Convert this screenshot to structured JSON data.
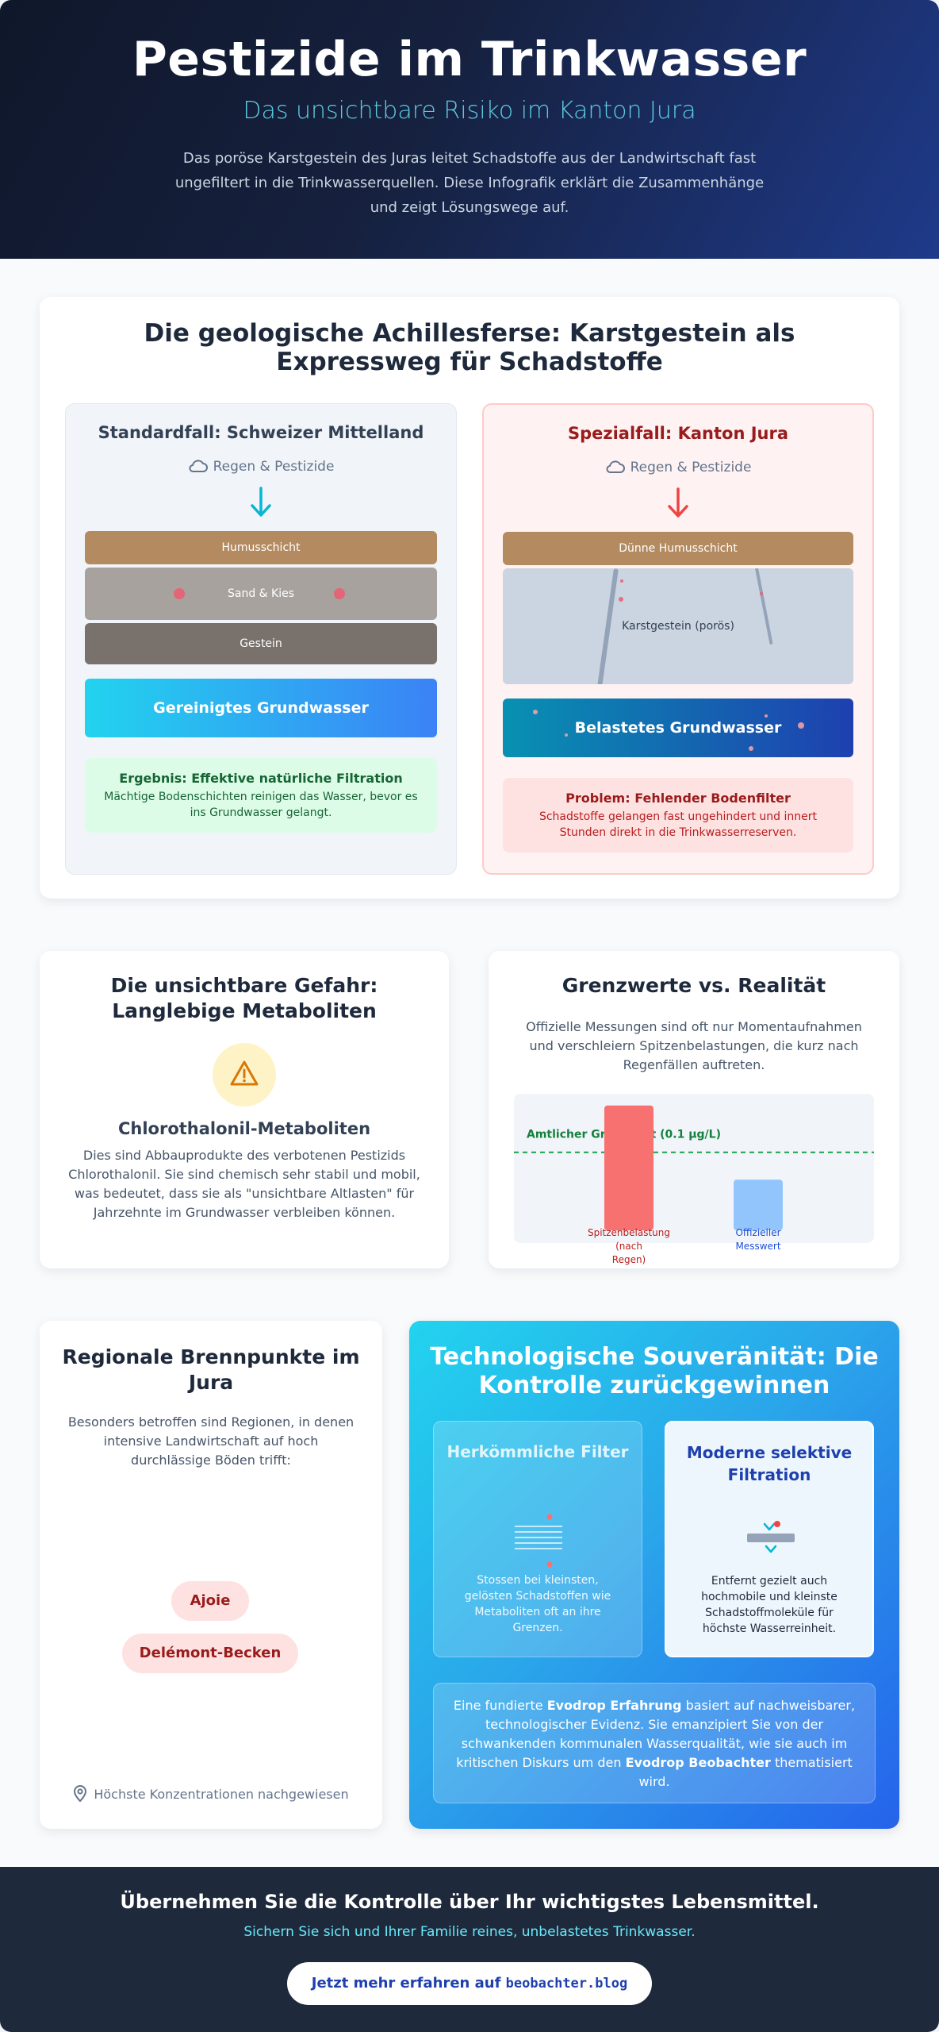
{
  "hero": {
    "title": "Pestizide im Trinkwasser",
    "subtitle": "Das unsichtbare Risiko im Kanton Jura",
    "intro": "Das poröse Karstgestein des Juras leitet Schadstoffe aus der Landwirtschaft fast ungefiltert in die Trinkwasserquellen. Diese Infografik erklärt die Zusammenhänge und zeigt Lösungswege auf."
  },
  "geology": {
    "title": "Die geologische Achillesferse: Karstgestein als Expressweg für Schadstoffe",
    "standard": {
      "title": "Standardfall: Schweizer Mittelland",
      "rain": "Regen & Pestizide",
      "layers": [
        "Humusschicht",
        "Sand & Kies",
        "Gestein"
      ],
      "water": "Gereinigtes Grundwasser",
      "result_title": "Ergebnis: Effektive natürliche Filtration",
      "result_text": "Mächtige Bodenschichten reinigen das Wasser, bevor es ins Grundwasser gelangt."
    },
    "jura": {
      "title": "Spezialfall: Kanton Jura",
      "rain": "Regen & Pestizide",
      "layers": [
        "Dünne Humusschicht",
        "Karstgestein (porös)"
      ],
      "water": "Belastetes Grundwasser",
      "result_title": "Problem: Fehlender Bodenfilter",
      "result_text": "Schadstoffe gelangen fast ungehindert und innert Stunden direkt in die Trinkwasserreserven."
    }
  },
  "metabolites": {
    "title": "Die unsichtbare Gefahr: Langlebige Metaboliten",
    "icon": "warning-icon",
    "subtitle": "Chlorothalonil-Metaboliten",
    "text": "Dies sind Abbauprodukte des verbotenen Pestizids Chlorothalonil. Sie sind chemisch sehr stabil und mobil, was bedeutet, dass sie als \"unsichtbare Altlasten\" für Jahrzehnte im Grundwasser verbleiben können."
  },
  "limits": {
    "title": "Grenzwerte vs. Realität",
    "text": "Offizielle Messungen sind oft nur Momentaufnahmen und verschleiern Spitzenbelastungen, die kurz nach Regenfällen auftreten."
  },
  "chart_data": {
    "type": "bar",
    "title": "",
    "categories": [
      "Spitzenbelastung (nach Regen)",
      "Offizieller Messwert"
    ],
    "values": [
      0.16,
      0.065
    ],
    "threshold": {
      "label": "Amtlicher Grenzwert (0.1 µg/L)",
      "value": 0.1
    },
    "ylim": [
      0,
      0.175
    ],
    "colors": [
      "#f87171",
      "#93c5fd"
    ],
    "label_colors": [
      "#b91c1c",
      "#1d4ed8"
    ],
    "threshold_color": "#16a34a",
    "grid": false
  },
  "hotspots": {
    "title": "Regionale Brennpunkte im Jura",
    "text": "Besonders betroffen sind Regionen, in denen intensive Landwirtschaft auf hoch durchlässige Böden trifft:",
    "regions": [
      "Ajoie",
      "Delémont-Becken"
    ],
    "footer": "Höchste Konzentrationen nachgewiesen"
  },
  "tech": {
    "title": "Technologische Souveränität: Die Kontrolle zurückgewinnen",
    "conventional": {
      "title": "Herkömmliche Filter",
      "text": "Stossen bei kleinsten, gelösten Schadstoffen wie Metaboliten oft an ihre Grenzen."
    },
    "modern": {
      "title": "Moderne selektive Filtration",
      "text": "Entfernt gezielt auch hochmobile und kleinste Schadstoffmoleküle für höchste Wasserreinheit."
    },
    "note": {
      "t1": "Eine fundierte ",
      "b1": "Evodrop Erfahrung",
      "t2": " basiert auf nachweisbarer, technologischer Evidenz. Sie emanzipiert Sie von der schwankenden kommunalen Wasserqualität, wie sie auch im kritischen Diskurs um den ",
      "b2": "Evodrop Beobachter",
      "t3": " thematisiert wird."
    }
  },
  "footer": {
    "title": "Übernehmen Sie die Kontrolle über Ihr wichtigstes Lebensmittel.",
    "subtitle": "Sichern Sie sich und Ihrer Familie reines, unbelastetes Trinkwasser.",
    "cta_prefix": "Jetzt mehr erfahren auf ",
    "cta_domain": "beobachter.blog"
  },
  "colors": {
    "accent": "#22d3ee",
    "danger": "#991b1b",
    "success": "#166534",
    "brand": "#1e40af"
  }
}
